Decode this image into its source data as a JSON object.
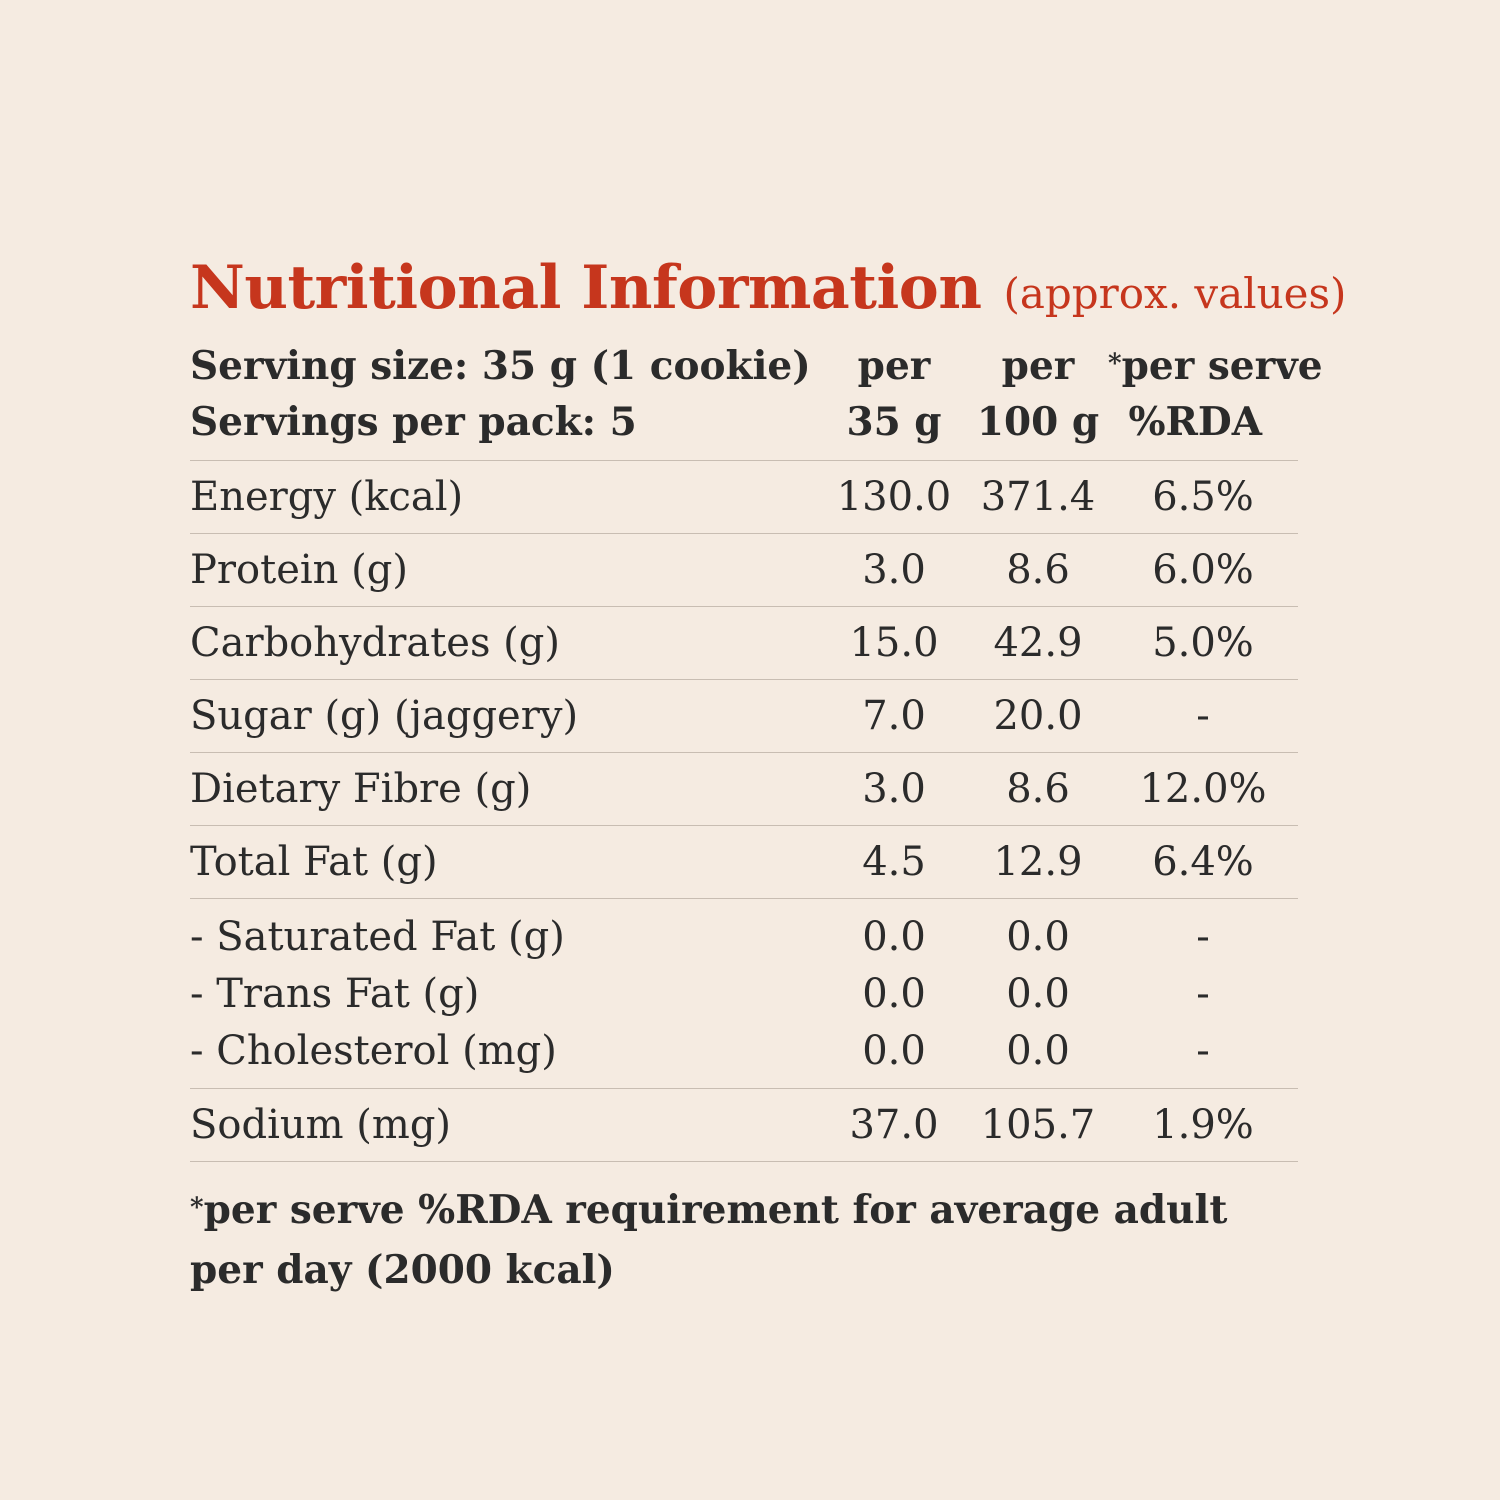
{
  "title": "Nutritional Information",
  "subtitle": "(approx. values)",
  "header": {
    "serving_size": "Serving size: 35 g (1 cookie)",
    "servings_per_pack": "Servings per pack: 5",
    "col1_line1": "per",
    "col1_line2": "35 g",
    "col2_line1": "per",
    "col2_line2": "100 g",
    "col3_star": "*",
    "col3_line1": "per serve",
    "col3_line2": "%RDA"
  },
  "rows": [
    {
      "label": "Energy (kcal)",
      "per35": "130.0",
      "per100": "371.4",
      "rda": "6.5%"
    },
    {
      "label": "Protein (g)",
      "per35": "3.0",
      "per100": "8.6",
      "rda": "6.0%"
    },
    {
      "label": "Carbohydrates (g)",
      "per35": "15.0",
      "per100": "42.9",
      "rda": "5.0%"
    },
    {
      "label": "Sugar (g) (jaggery)",
      "per35": "7.0",
      "per100": "20.0",
      "rda": "-"
    },
    {
      "label": "Dietary Fibre (g)",
      "per35": "3.0",
      "per100": "8.6",
      "rda": "12.0%"
    },
    {
      "label": "Total Fat (g)",
      "per35": "4.5",
      "per100": "12.9",
      "rda": "6.4%"
    }
  ],
  "fat_subrows": [
    {
      "label": "- Saturated Fat (g)",
      "per35": "0.0",
      "per100": "0.0",
      "rda": "-"
    },
    {
      "label": "- Trans Fat (g)",
      "per35": "0.0",
      "per100": "0.0",
      "rda": "-"
    },
    {
      "label": "- Cholesterol (mg)",
      "per35": "0.0",
      "per100": "0.0",
      "rda": "-"
    }
  ],
  "sodium": {
    "label": "Sodium (mg)",
    "per35": "37.0",
    "per100": "105.7",
    "rda": "1.9%"
  },
  "footnote": {
    "star": "*",
    "text": "per serve %RDA requirement for average adult per day (2000 kcal)"
  }
}
